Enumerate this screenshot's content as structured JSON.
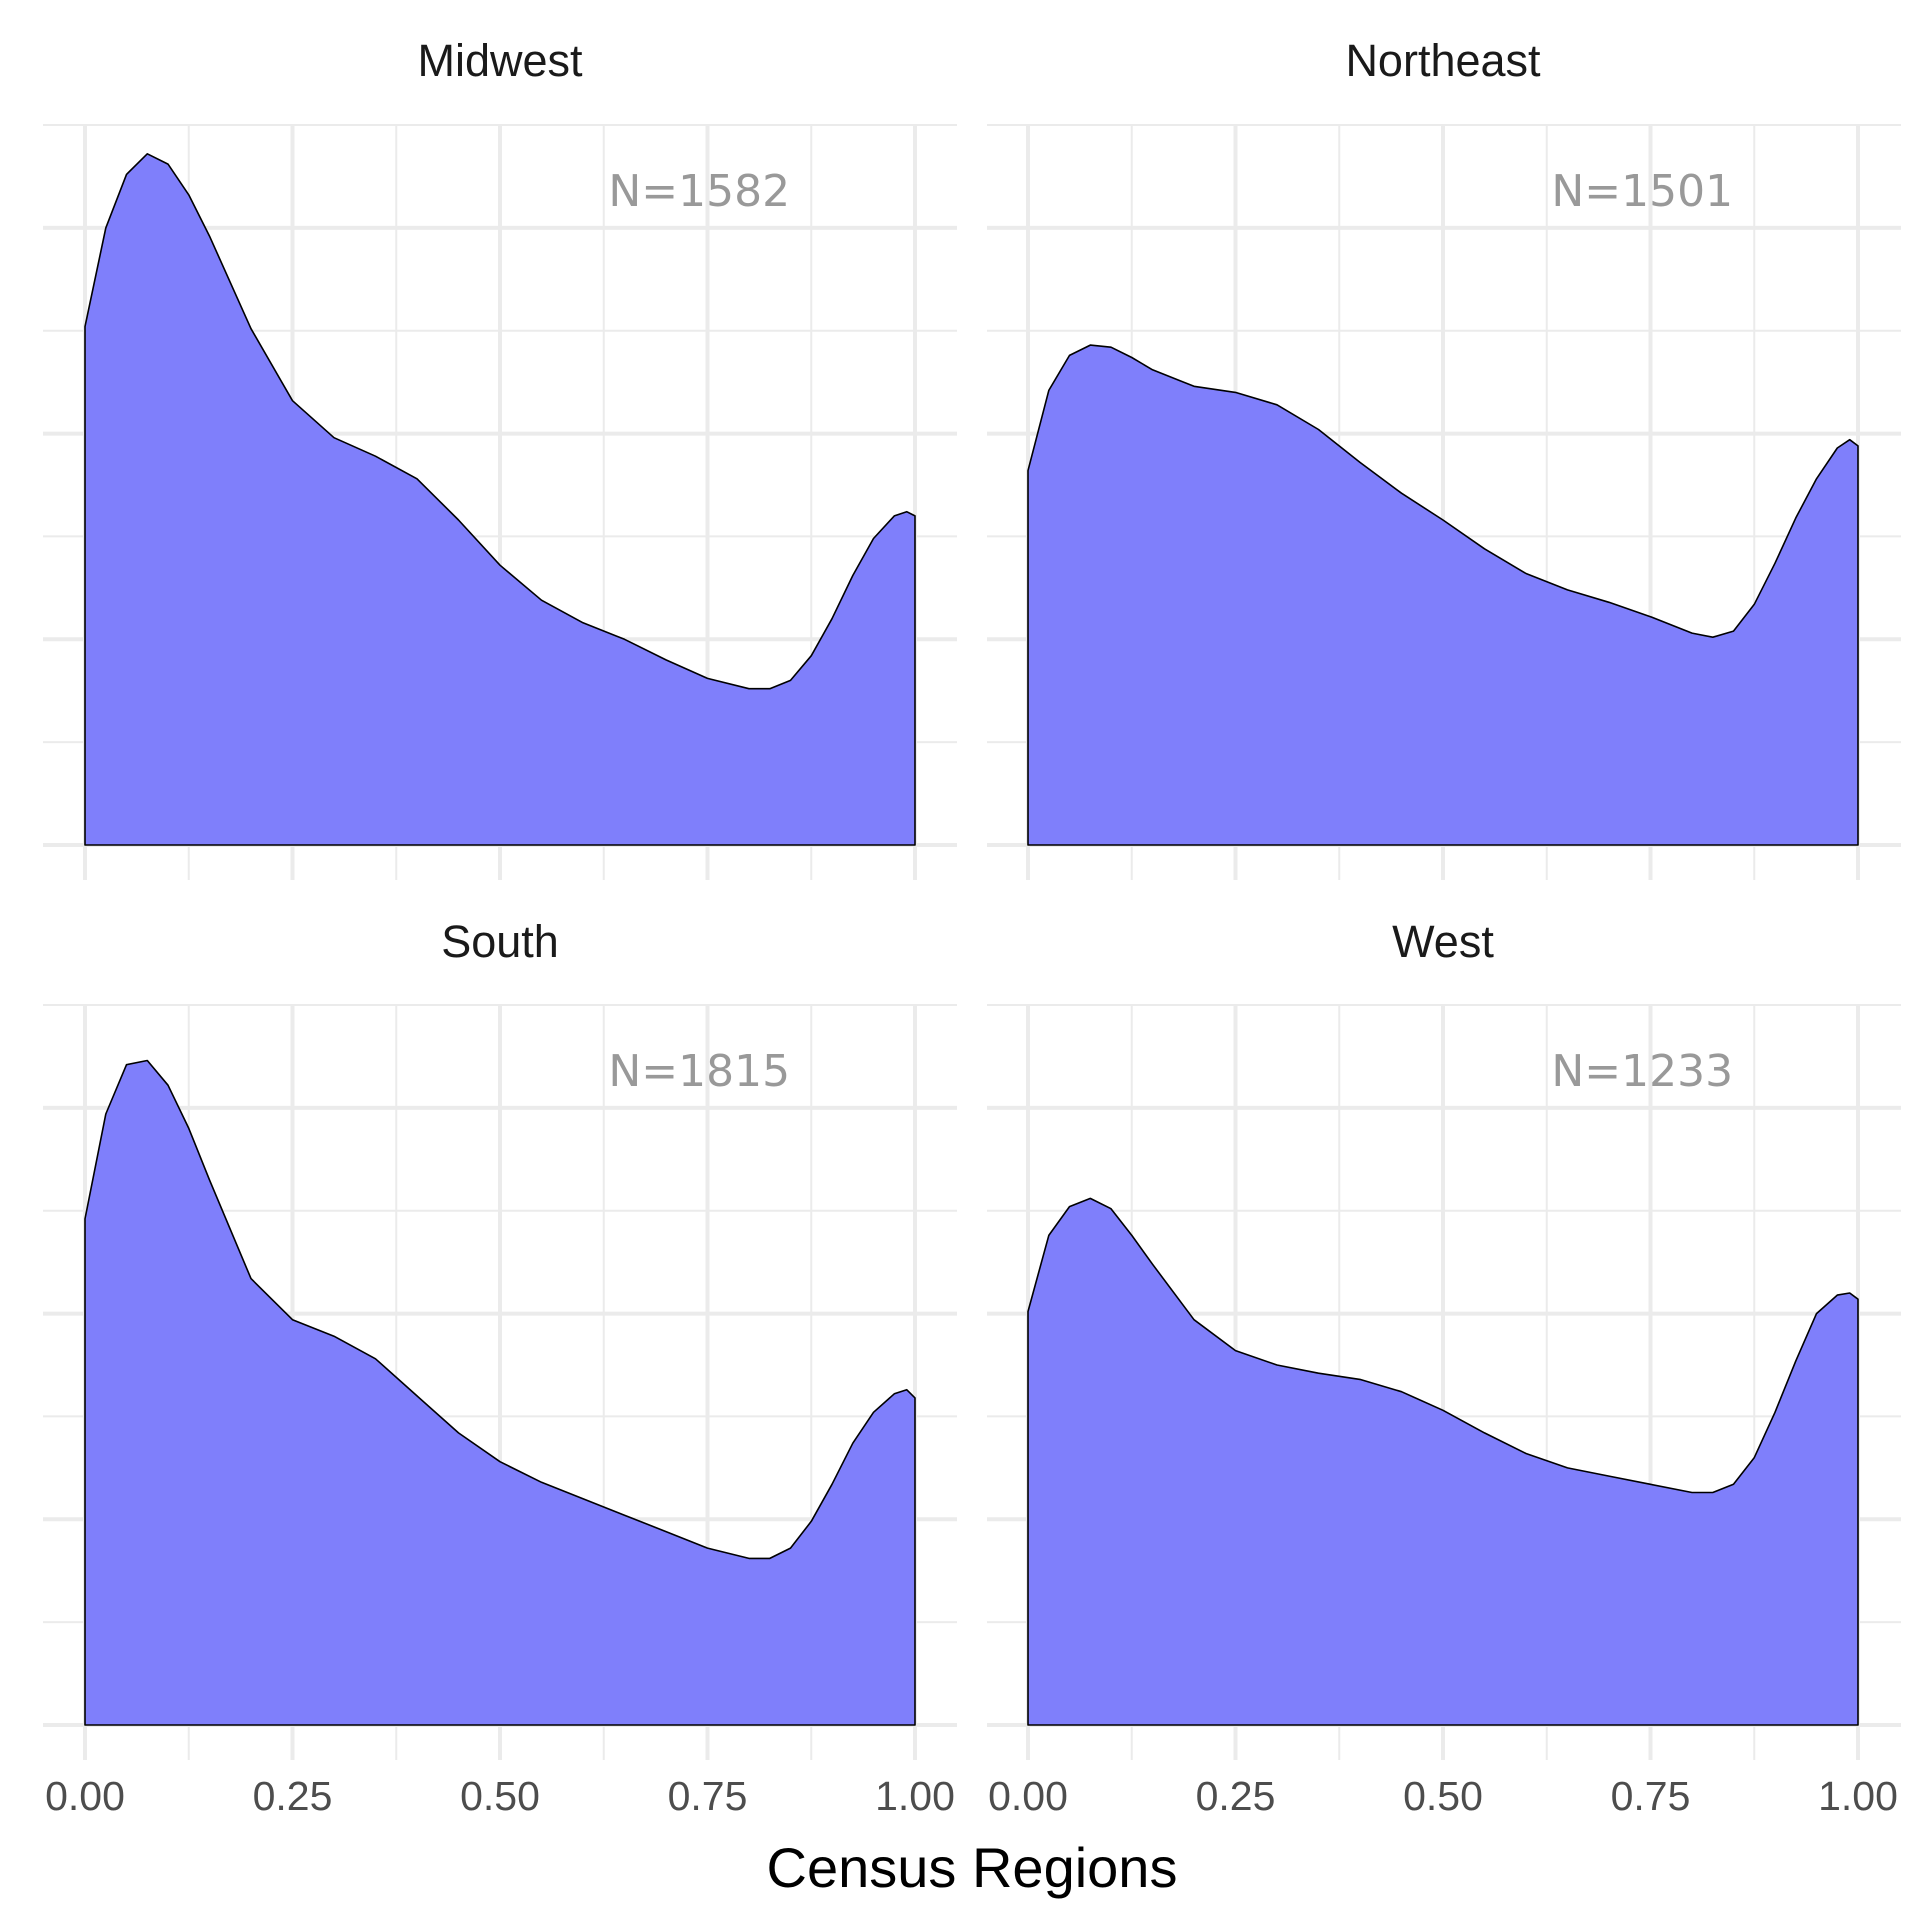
{
  "chart_data": {
    "type": "area",
    "kind": "density",
    "xlabel": "Census Regions",
    "ylabel": "",
    "xlim": [
      0,
      1
    ],
    "x_ticks": [
      "0.00",
      "0.25",
      "0.50",
      "0.75",
      "1.00"
    ],
    "y_tick_labels_shown": false,
    "grid": true,
    "fill_color": "#7f7ffb",
    "outline_color": "#000000",
    "panel_layout": "2x2",
    "panels": [
      {
        "title": "Midwest",
        "annotation": "N=1582",
        "x": [
          0,
          0.025,
          0.05,
          0.075,
          0.1,
          0.125,
          0.15,
          0.2,
          0.25,
          0.3,
          0.35,
          0.4,
          0.45,
          0.5,
          0.55,
          0.6,
          0.65,
          0.7,
          0.75,
          0.8,
          0.825,
          0.85,
          0.875,
          0.9,
          0.925,
          0.95,
          0.975,
          0.99,
          1.0
        ],
        "density": [
          2.52,
          3.0,
          3.26,
          3.36,
          3.31,
          3.16,
          2.96,
          2.51,
          2.16,
          1.98,
          1.89,
          1.78,
          1.58,
          1.36,
          1.19,
          1.08,
          1.0,
          0.9,
          0.81,
          0.76,
          0.76,
          0.8,
          0.92,
          1.1,
          1.31,
          1.49,
          1.6,
          1.62,
          1.6
        ]
      },
      {
        "title": "Northeast",
        "annotation": "N=1501",
        "x": [
          0,
          0.025,
          0.05,
          0.075,
          0.1,
          0.125,
          0.15,
          0.2,
          0.25,
          0.3,
          0.35,
          0.4,
          0.45,
          0.5,
          0.55,
          0.6,
          0.65,
          0.7,
          0.75,
          0.8,
          0.825,
          0.85,
          0.875,
          0.9,
          0.925,
          0.95,
          0.975,
          0.99,
          1.0
        ],
        "density": [
          1.82,
          2.21,
          2.38,
          2.43,
          2.42,
          2.37,
          2.31,
          2.23,
          2.2,
          2.14,
          2.02,
          1.86,
          1.71,
          1.58,
          1.44,
          1.32,
          1.24,
          1.18,
          1.11,
          1.03,
          1.01,
          1.04,
          1.17,
          1.37,
          1.59,
          1.78,
          1.93,
          1.97,
          1.94
        ]
      },
      {
        "title": "South",
        "annotation": "N=1815",
        "x": [
          0,
          0.025,
          0.05,
          0.075,
          0.1,
          0.125,
          0.15,
          0.2,
          0.25,
          0.3,
          0.35,
          0.4,
          0.45,
          0.5,
          0.55,
          0.6,
          0.65,
          0.7,
          0.75,
          0.8,
          0.825,
          0.85,
          0.875,
          0.9,
          0.925,
          0.95,
          0.975,
          0.99,
          1.0
        ],
        "density": [
          2.46,
          2.97,
          3.21,
          3.23,
          3.11,
          2.9,
          2.65,
          2.17,
          1.97,
          1.89,
          1.78,
          1.6,
          1.42,
          1.28,
          1.18,
          1.1,
          1.02,
          0.94,
          0.86,
          0.81,
          0.81,
          0.86,
          0.99,
          1.17,
          1.37,
          1.52,
          1.61,
          1.63,
          1.59
        ]
      },
      {
        "title": "West",
        "annotation": "N=1233",
        "x": [
          0,
          0.025,
          0.05,
          0.075,
          0.1,
          0.125,
          0.15,
          0.2,
          0.25,
          0.3,
          0.35,
          0.4,
          0.45,
          0.5,
          0.55,
          0.6,
          0.65,
          0.7,
          0.75,
          0.8,
          0.825,
          0.85,
          0.875,
          0.9,
          0.925,
          0.95,
          0.975,
          0.99,
          1.0
        ],
        "density": [
          2.01,
          2.38,
          2.52,
          2.56,
          2.51,
          2.38,
          2.24,
          1.97,
          1.82,
          1.75,
          1.71,
          1.68,
          1.62,
          1.53,
          1.42,
          1.32,
          1.25,
          1.21,
          1.17,
          1.13,
          1.13,
          1.17,
          1.3,
          1.52,
          1.77,
          2.0,
          2.09,
          2.1,
          2.07
        ]
      }
    ]
  }
}
